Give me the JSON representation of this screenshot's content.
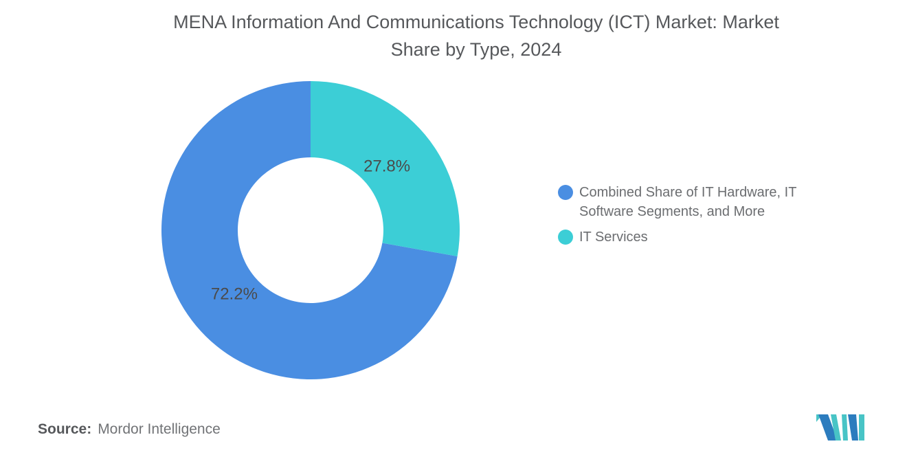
{
  "title": {
    "line1": "MENA Information And Communications Technology (ICT) Market: Market",
    "line2": "Share by Type, 2024"
  },
  "chart_data": {
    "type": "pie",
    "subtype": "donut",
    "title": "MENA Information And Communications Technology (ICT) Market: Market Share by Type, 2024",
    "categories": [
      "Combined Share of IT Hardware, IT Software Segments, and More",
      "IT Services"
    ],
    "values": [
      72.2,
      27.8
    ],
    "labels": [
      "72.2%",
      "27.8%"
    ],
    "colors": [
      "#4A8EE2",
      "#3CCED6"
    ],
    "start_angle": "top",
    "direction": "counter-clockwise",
    "legend_position": "right",
    "grid": false
  },
  "source": {
    "prefix": "Source:",
    "text": "Mordor Intelligence"
  },
  "logo": {
    "name": "mordor-intelligence-logo",
    "blue": "#2C7CBE",
    "teal": "#48C4C6"
  }
}
